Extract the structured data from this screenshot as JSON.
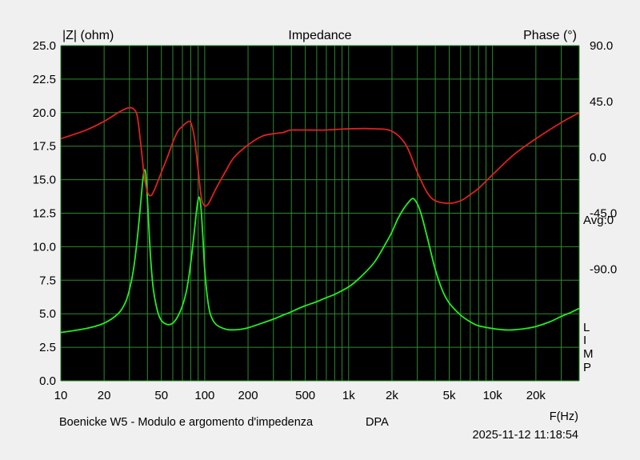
{
  "chart_data": {
    "type": "line",
    "title": "Impedance",
    "left_axis_label": "|Z| (ohm)",
    "right_axis_label": "Phase (°)",
    "xlabel": "F(Hz)",
    "x_scale": "log",
    "xlim": [
      10,
      40000
    ],
    "ylim_left": [
      0,
      25
    ],
    "ylim_right": [
      -180,
      90
    ],
    "left_ticks": [
      "0.0",
      "2.5",
      "5.0",
      "7.5",
      "10.0",
      "12.5",
      "15.0",
      "17.5",
      "20.0",
      "22.5",
      "25.0"
    ],
    "right_ticks": [
      "90.0",
      "45.0",
      "0.0",
      "-45.0",
      "-90.0"
    ],
    "x_tick_values": [
      10,
      20,
      50,
      100,
      200,
      500,
      1000,
      2000,
      5000,
      10000,
      20000
    ],
    "x_tick_labels": [
      "10",
      "20",
      "50",
      "100",
      "200",
      "500",
      "1k",
      "2k",
      "5k",
      "10k",
      "20k"
    ],
    "avg_label": "Avg:0",
    "side_letters": [
      "L",
      "I",
      "M",
      "P"
    ],
    "footer_left": "Boenicke W5 - Modulo e argomento d'impedenza",
    "footer_tag": "DPA",
    "timestamp": "2025-11-12 11:18:54",
    "grid": true,
    "background": "#000000",
    "grid_color": "#2d8a2d",
    "series": [
      {
        "axis": "left",
        "color": "#22ee22",
        "x": [
          10,
          15,
          20,
          25,
          28,
          30,
          32,
          34,
          36,
          37,
          38,
          39,
          40,
          42,
          44,
          47,
          50,
          55,
          60,
          65,
          70,
          75,
          80,
          85,
          88,
          91,
          94,
          97,
          100,
          105,
          110,
          120,
          140,
          160,
          180,
          200,
          250,
          300,
          350,
          370,
          400,
          450,
          500,
          600,
          700,
          800,
          1000,
          1200,
          1500,
          1800,
          2000,
          2200,
          2400,
          2600,
          2800,
          3000,
          3200,
          3500,
          4000,
          4500,
          5000,
          6000,
          7000,
          8000,
          10000,
          12000,
          14000,
          17000,
          20000,
          25000,
          30000,
          35000,
          40000
        ],
        "y": [
          3.6,
          3.9,
          4.3,
          5.0,
          5.8,
          6.8,
          8.3,
          10.6,
          13.4,
          14.8,
          15.7,
          15.4,
          13.5,
          9.3,
          6.8,
          5.2,
          4.5,
          4.2,
          4.3,
          4.8,
          5.6,
          6.8,
          8.8,
          11.3,
          12.8,
          13.7,
          13.0,
          10.8,
          8.3,
          6.0,
          4.9,
          4.2,
          3.85,
          3.8,
          3.85,
          3.95,
          4.3,
          4.6,
          4.9,
          5.0,
          5.15,
          5.4,
          5.6,
          5.9,
          6.2,
          6.45,
          7.0,
          7.7,
          8.8,
          10.2,
          11.1,
          12.1,
          12.8,
          13.3,
          13.6,
          13.2,
          12.4,
          10.8,
          8.3,
          6.7,
          5.8,
          4.9,
          4.4,
          4.1,
          3.9,
          3.8,
          3.8,
          3.9,
          4.05,
          4.4,
          4.8,
          5.1,
          5.4
        ]
      },
      {
        "axis": "right",
        "color": "#e02020",
        "x": [
          10,
          15,
          20,
          25,
          28,
          30,
          32,
          34,
          36,
          38,
          40,
          42,
          44,
          47,
          50,
          55,
          60,
          65,
          70,
          75,
          80,
          85,
          90,
          95,
          100,
          105,
          110,
          120,
          140,
          160,
          200,
          250,
          300,
          350,
          370,
          400,
          500,
          700,
          1000,
          1500,
          2000,
          2500,
          3000,
          3500,
          4000,
          5000,
          6000,
          7000,
          8000,
          10000,
          14000,
          20000,
          30000,
          40000
        ],
        "y": [
          15,
          22,
          29,
          36,
          39,
          40,
          39,
          33,
          10,
          -15,
          -28,
          -31,
          -28,
          -20,
          -12,
          0,
          12,
          21,
          25,
          28,
          28,
          15,
          -10,
          -33,
          -39,
          -38,
          -34,
          -25,
          -11,
          0,
          10,
          17,
          19,
          20,
          21,
          22,
          22,
          22,
          23,
          23,
          21,
          10,
          -12,
          -28,
          -35,
          -37,
          -35,
          -30,
          -25,
          -14,
          2,
          15,
          28,
          36
        ]
      }
    ]
  }
}
